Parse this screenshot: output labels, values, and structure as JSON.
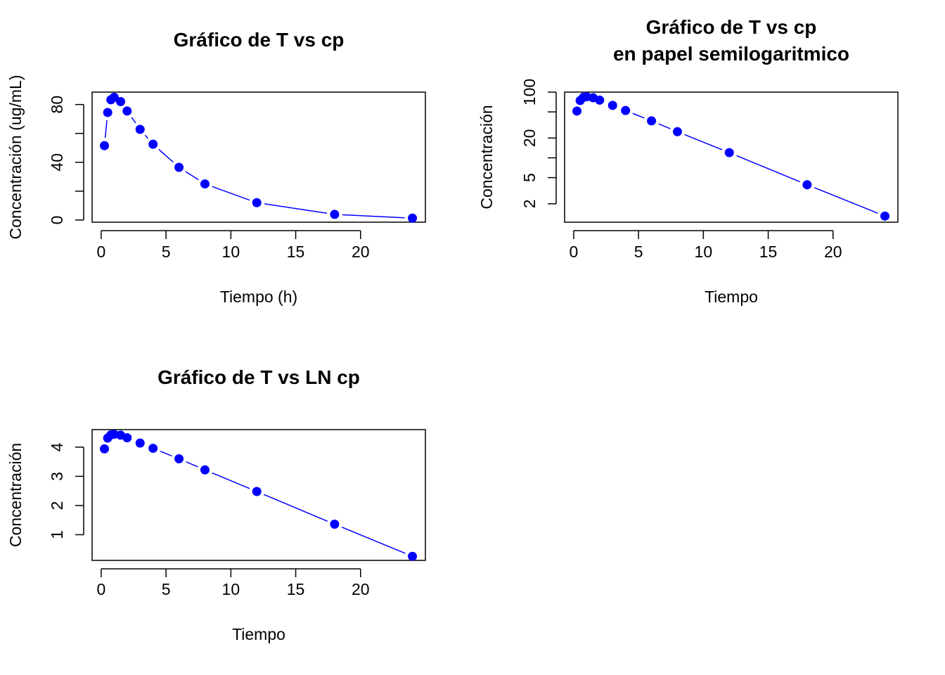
{
  "chart_data": [
    {
      "type": "line",
      "title": [
        "Gráfico de T vs cp"
      ],
      "xlabel": "Tiempo (h)",
      "ylabel": "Concentración (ug/mL)",
      "xlim": [
        -0.7,
        25
      ],
      "ylim": [
        -1.5,
        88.6
      ],
      "ylog": false,
      "xticks": [
        "0",
        "5",
        "10",
        "15",
        "20"
      ],
      "xtick_values": [
        0,
        5,
        10,
        15,
        20
      ],
      "yticks": [
        "0",
        "40",
        "80"
      ],
      "ytick_values": [
        0,
        40,
        80
      ],
      "yminor": [
        20,
        60
      ],
      "grid": false,
      "color": "#0000ff",
      "series": [
        {
          "x": [
            0.25,
            0.5,
            0.75,
            1,
            1.5,
            2,
            3,
            4,
            6,
            8,
            12,
            18,
            24
          ],
          "y": [
            51.5,
            74.5,
            83.3,
            85.0,
            82.0,
            75.5,
            62.8,
            52.5,
            36.5,
            25.0,
            12.0,
            3.9,
            1.3
          ]
        }
      ]
    },
    {
      "type": "line",
      "title": [
        "Gráfico de T vs cp",
        "en papel semilogaritmico"
      ],
      "xlabel": "Tiempo",
      "ylabel": "Concentración",
      "xlim": [
        -0.7,
        25
      ],
      "ylim": [
        1.05,
        100
      ],
      "ylog": true,
      "xticks": [
        "0",
        "5",
        "10",
        "15",
        "20"
      ],
      "xtick_values": [
        0,
        5,
        10,
        15,
        20
      ],
      "yticks": [
        "2",
        "5",
        "20",
        "100"
      ],
      "ytick_values": [
        2,
        5,
        20,
        100
      ],
      "yminor": [
        10,
        50
      ],
      "grid": false,
      "color": "#0000ff",
      "series": [
        {
          "x": [
            0.25,
            0.5,
            0.75,
            1,
            1.5,
            2,
            3,
            4,
            6,
            8,
            12,
            18,
            24
          ],
          "y": [
            51.5,
            74.5,
            83.3,
            85.0,
            82.0,
            75.5,
            62.8,
            52.5,
            36.5,
            25.0,
            12.0,
            3.9,
            1.3
          ]
        }
      ]
    },
    {
      "type": "line",
      "title": [
        "Gráfico de T vs LN cp"
      ],
      "xlabel": "Tiempo",
      "ylabel": "Concentración",
      "xlim": [
        -0.7,
        25
      ],
      "ylim": [
        0.12,
        4.6
      ],
      "ylog": false,
      "xticks": [
        "0",
        "5",
        "10",
        "15",
        "20"
      ],
      "xtick_values": [
        0,
        5,
        10,
        15,
        20
      ],
      "yticks": [
        "1",
        "2",
        "3",
        "4"
      ],
      "ytick_values": [
        1,
        2,
        3,
        4
      ],
      "yminor": [],
      "grid": false,
      "color": "#0000ff",
      "series": [
        {
          "x": [
            0.25,
            0.5,
            0.75,
            1,
            1.5,
            2,
            3,
            4,
            6,
            8,
            12,
            18,
            24
          ],
          "y": [
            3.94,
            4.31,
            4.42,
            4.44,
            4.41,
            4.32,
            4.14,
            3.96,
            3.6,
            3.22,
            2.48,
            1.36,
            0.26
          ]
        }
      ]
    }
  ]
}
